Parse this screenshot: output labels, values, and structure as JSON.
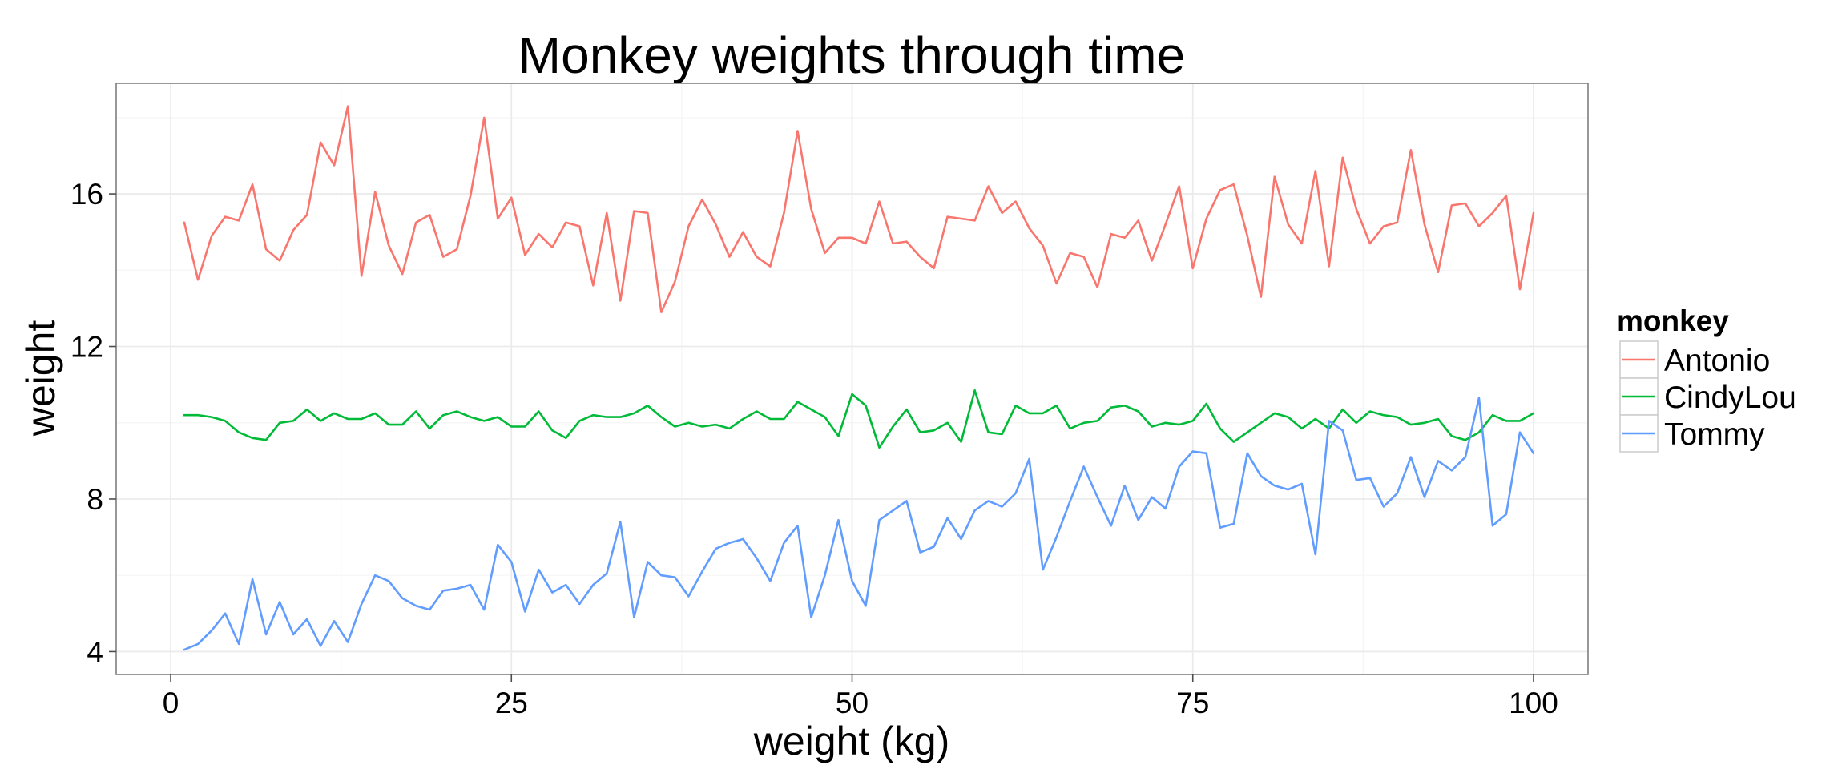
{
  "chart_data": {
    "type": "line",
    "title": "Monkey weights through time",
    "xlabel": "weight (kg)",
    "ylabel": "weight",
    "xlim": [
      -4,
      104
    ],
    "ylim": [
      3.4,
      18.9
    ],
    "x_ticks": [
      0,
      25,
      50,
      75,
      100
    ],
    "x_tick_labels": [
      "0",
      "25",
      "50",
      "75",
      "100"
    ],
    "y_ticks": [
      4,
      8,
      12,
      16
    ],
    "y_tick_labels": [
      "4",
      "8",
      "12",
      "16"
    ],
    "grid": true,
    "legend": {
      "title": "monkey",
      "position": "right"
    },
    "x": [
      1,
      2,
      3,
      4,
      5,
      6,
      7,
      8,
      9,
      10,
      11,
      12,
      13,
      14,
      15,
      16,
      17,
      18,
      19,
      20,
      21,
      22,
      23,
      24,
      25,
      26,
      27,
      28,
      29,
      30,
      31,
      32,
      33,
      34,
      35,
      36,
      37,
      38,
      39,
      40,
      41,
      42,
      43,
      44,
      45,
      46,
      47,
      48,
      49,
      50,
      51,
      52,
      53,
      54,
      55,
      56,
      57,
      58,
      59,
      60,
      61,
      62,
      63,
      64,
      65,
      66,
      67,
      68,
      69,
      70,
      71,
      72,
      73,
      74,
      75,
      76,
      77,
      78,
      79,
      80,
      81,
      82,
      83,
      84,
      85,
      86,
      87,
      88,
      89,
      90,
      91,
      92,
      93,
      94,
      95,
      96,
      97,
      98,
      99,
      100
    ],
    "series": [
      {
        "name": "Antonio",
        "color": "#F8766D",
        "values": [
          15.25,
          13.75,
          14.9,
          15.4,
          15.3,
          16.25,
          14.55,
          14.25,
          15.05,
          15.45,
          17.35,
          16.75,
          18.3,
          13.85,
          16.05,
          14.65,
          13.9,
          15.25,
          15.45,
          14.35,
          14.55,
          15.95,
          18.0,
          15.35,
          15.9,
          14.4,
          14.95,
          14.6,
          15.25,
          15.15,
          13.6,
          15.5,
          13.2,
          15.55,
          15.5,
          12.9,
          13.7,
          15.15,
          15.85,
          15.2,
          14.35,
          15.0,
          14.35,
          14.1,
          15.5,
          17.65,
          15.6,
          14.45,
          14.85,
          14.85,
          14.7,
          15.8,
          14.7,
          14.75,
          14.35,
          14.05,
          15.4,
          15.35,
          15.3,
          16.2,
          15.5,
          15.8,
          15.1,
          14.65,
          13.65,
          14.45,
          14.35,
          13.55,
          14.95,
          14.85,
          15.3,
          14.25,
          15.2,
          16.2,
          14.05,
          15.35,
          16.1,
          16.25,
          14.9,
          13.3,
          16.45,
          15.2,
          14.7,
          16.6,
          14.1,
          16.95,
          15.6,
          14.7,
          15.15,
          15.25,
          17.15,
          15.2,
          13.95,
          15.7,
          15.75,
          15.15,
          15.5,
          15.95,
          13.5,
          15.5
        ]
      },
      {
        "name": "CindyLou",
        "color": "#00BA38",
        "values": [
          10.2,
          10.2,
          10.15,
          10.05,
          9.75,
          9.6,
          9.55,
          10.0,
          10.05,
          10.35,
          10.05,
          10.25,
          10.1,
          10.1,
          10.25,
          9.95,
          9.95,
          10.3,
          9.85,
          10.2,
          10.3,
          10.15,
          10.05,
          10.15,
          9.9,
          9.9,
          10.3,
          9.8,
          9.6,
          10.05,
          10.2,
          10.15,
          10.15,
          10.25,
          10.45,
          10.15,
          9.9,
          10.0,
          9.9,
          9.95,
          9.85,
          10.1,
          10.3,
          10.1,
          10.1,
          10.55,
          10.35,
          10.15,
          9.65,
          10.75,
          10.45,
          9.35,
          9.9,
          10.35,
          9.75,
          9.8,
          10.0,
          9.5,
          10.85,
          9.75,
          9.7,
          10.45,
          10.25,
          10.25,
          10.45,
          9.85,
          10.0,
          10.05,
          10.4,
          10.45,
          10.3,
          9.9,
          10.0,
          9.95,
          10.05,
          10.5,
          9.85,
          9.5,
          9.75,
          10.0,
          10.25,
          10.15,
          9.85,
          10.1,
          9.85,
          10.35,
          10.0,
          10.3,
          10.2,
          10.15,
          9.95,
          10.0,
          10.1,
          9.65,
          9.55,
          9.75,
          10.2,
          10.05,
          10.05,
          10.25
        ]
      },
      {
        "name": "Tommy",
        "color": "#619CFF",
        "values": [
          4.05,
          4.2,
          4.55,
          5.0,
          4.2,
          5.9,
          4.45,
          5.3,
          4.45,
          4.85,
          4.15,
          4.8,
          4.25,
          5.25,
          6.0,
          5.85,
          5.4,
          5.2,
          5.1,
          5.6,
          5.65,
          5.75,
          5.1,
          6.8,
          6.35,
          5.05,
          6.15,
          5.55,
          5.75,
          5.25,
          5.75,
          6.05,
          7.4,
          4.9,
          6.35,
          6.0,
          5.95,
          5.45,
          6.1,
          6.7,
          6.85,
          6.95,
          6.45,
          5.85,
          6.85,
          7.3,
          4.9,
          6.0,
          7.45,
          5.85,
          5.2,
          7.45,
          7.7,
          7.95,
          6.6,
          6.75,
          7.5,
          6.95,
          7.7,
          7.95,
          7.8,
          8.15,
          9.05,
          6.15,
          7.0,
          7.95,
          8.85,
          8.05,
          7.3,
          8.35,
          7.45,
          8.05,
          7.75,
          8.85,
          9.25,
          9.2,
          7.25,
          7.35,
          9.2,
          8.6,
          8.35,
          8.25,
          8.4,
          6.55,
          10.05,
          9.8,
          8.5,
          8.55,
          7.8,
          8.15,
          9.1,
          8.05,
          9.0,
          8.75,
          9.1,
          10.65,
          7.3,
          7.6,
          9.75,
          9.2
        ]
      }
    ]
  }
}
